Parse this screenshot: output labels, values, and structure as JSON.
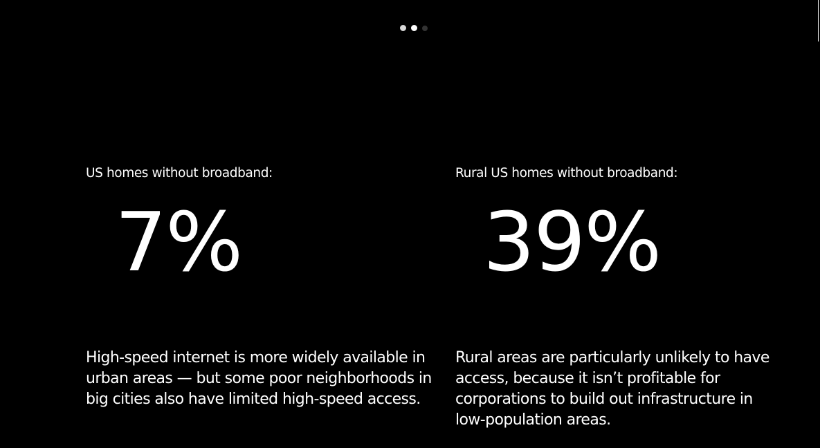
{
  "pager": {
    "dots": [
      "slide-1",
      "slide-2",
      "slide-3"
    ],
    "active_index": 2
  },
  "stats": {
    "left": {
      "label": "US homes without broadband:",
      "value": "7%",
      "description": "High-speed internet is more widely available in urban areas — but some poor neighborhoods in big cities also have limited high-speed access."
    },
    "right": {
      "label": "Rural US homes without broadband:",
      "value": "39%",
      "description": "Rural areas are particularly unlikely to have access, because it isn’t profitable for corporations to build out infrastructure in low-population areas."
    }
  },
  "colors": {
    "background": "#000000",
    "text": "#ffffff",
    "dot_inactive": "#333333"
  }
}
